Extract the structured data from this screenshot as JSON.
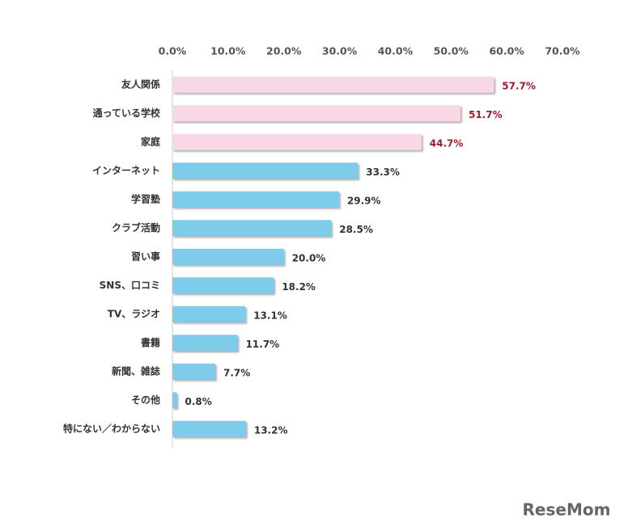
{
  "chart_data": {
    "type": "bar",
    "orientation": "horizontal",
    "categories": [
      "友人関係",
      "通っている学校",
      "家庭",
      "インターネット",
      "学習塾",
      "クラブ活動",
      "習い事",
      "SNS、口コミ",
      "TV、ラジオ",
      "書籍",
      "新聞、雑誌",
      "その他",
      "特にない／わからない"
    ],
    "values": [
      57.7,
      51.7,
      44.7,
      33.3,
      29.9,
      28.5,
      20.0,
      18.2,
      13.1,
      11.7,
      7.7,
      0.8,
      13.2
    ],
    "value_labels": [
      "57.7%",
      "51.7%",
      "44.7%",
      "33.3%",
      "29.9%",
      "28.5%",
      "20.0%",
      "18.2%",
      "13.1%",
      "11.7%",
      "7.7%",
      "0.8%",
      "13.2%"
    ],
    "colors": [
      "#f8d7e7",
      "#f8d7e7",
      "#f8d7e7",
      "#7ecbea",
      "#7ecbea",
      "#7ecbea",
      "#7ecbea",
      "#7ecbea",
      "#7ecbea",
      "#7ecbea",
      "#7ecbea",
      "#7ecbea",
      "#7ecbea"
    ],
    "label_colors": [
      "#a01c2a",
      "#a01c2a",
      "#a01c2a",
      "#333333",
      "#333333",
      "#333333",
      "#333333",
      "#333333",
      "#333333",
      "#333333",
      "#333333",
      "#333333",
      "#333333"
    ],
    "xlim": [
      0,
      70
    ],
    "xticks": [
      {
        "value": 0,
        "label": "0.0%"
      },
      {
        "value": 10,
        "label": "10.0%"
      },
      {
        "value": 20,
        "label": "20.0%"
      },
      {
        "value": 30,
        "label": "30.0%"
      },
      {
        "value": 40,
        "label": "40.0%"
      },
      {
        "value": 50,
        "label": "50.0%"
      },
      {
        "value": 60,
        "label": "60.0%"
      },
      {
        "value": 70,
        "label": "70.0%"
      }
    ],
    "grid": false
  },
  "watermark": "ReseMom"
}
